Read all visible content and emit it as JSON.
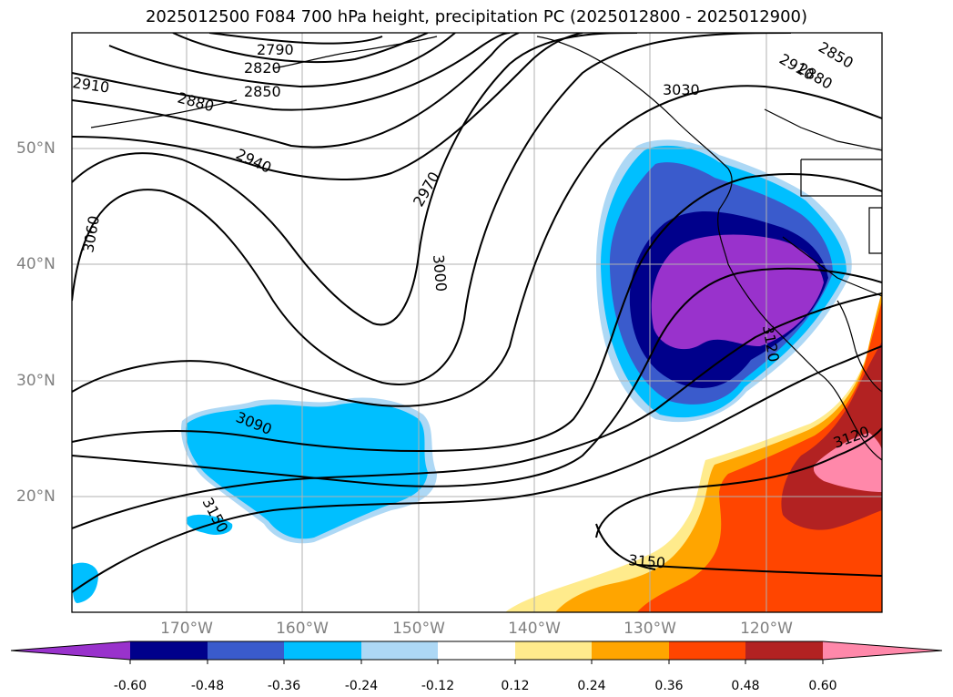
{
  "title": "2025012500 F084 700 hPa height, precipitation PC (2025012800 - 2025012900)",
  "lat_ticks": [
    "50°N",
    "40°N",
    "30°N",
    "20°N"
  ],
  "lon_ticks": [
    "170°W",
    "160°W",
    "150°W",
    "140°W",
    "130°W",
    "120°W"
  ],
  "contour_labels": [
    "2790",
    "2820",
    "2850",
    "2880",
    "2910",
    "2940",
    "2970",
    "3000",
    "3030",
    "3060",
    "3090",
    "3120",
    "3150",
    "2850",
    "2880",
    "2910"
  ],
  "colorbar_labels": [
    "-0.60",
    "-0.48",
    "-0.36",
    "-0.24",
    "-0.12",
    "0.12",
    "0.24",
    "0.36",
    "0.48",
    "0.60"
  ],
  "colorbar_colors": [
    "#9932cc",
    "#00008b",
    "#3a5bcc",
    "#00bfff",
    "#add8f5",
    "#ffffff",
    "#ffeb8c",
    "#ffa500",
    "#ff4500",
    "#b22222",
    "#ff88aa"
  ]
}
